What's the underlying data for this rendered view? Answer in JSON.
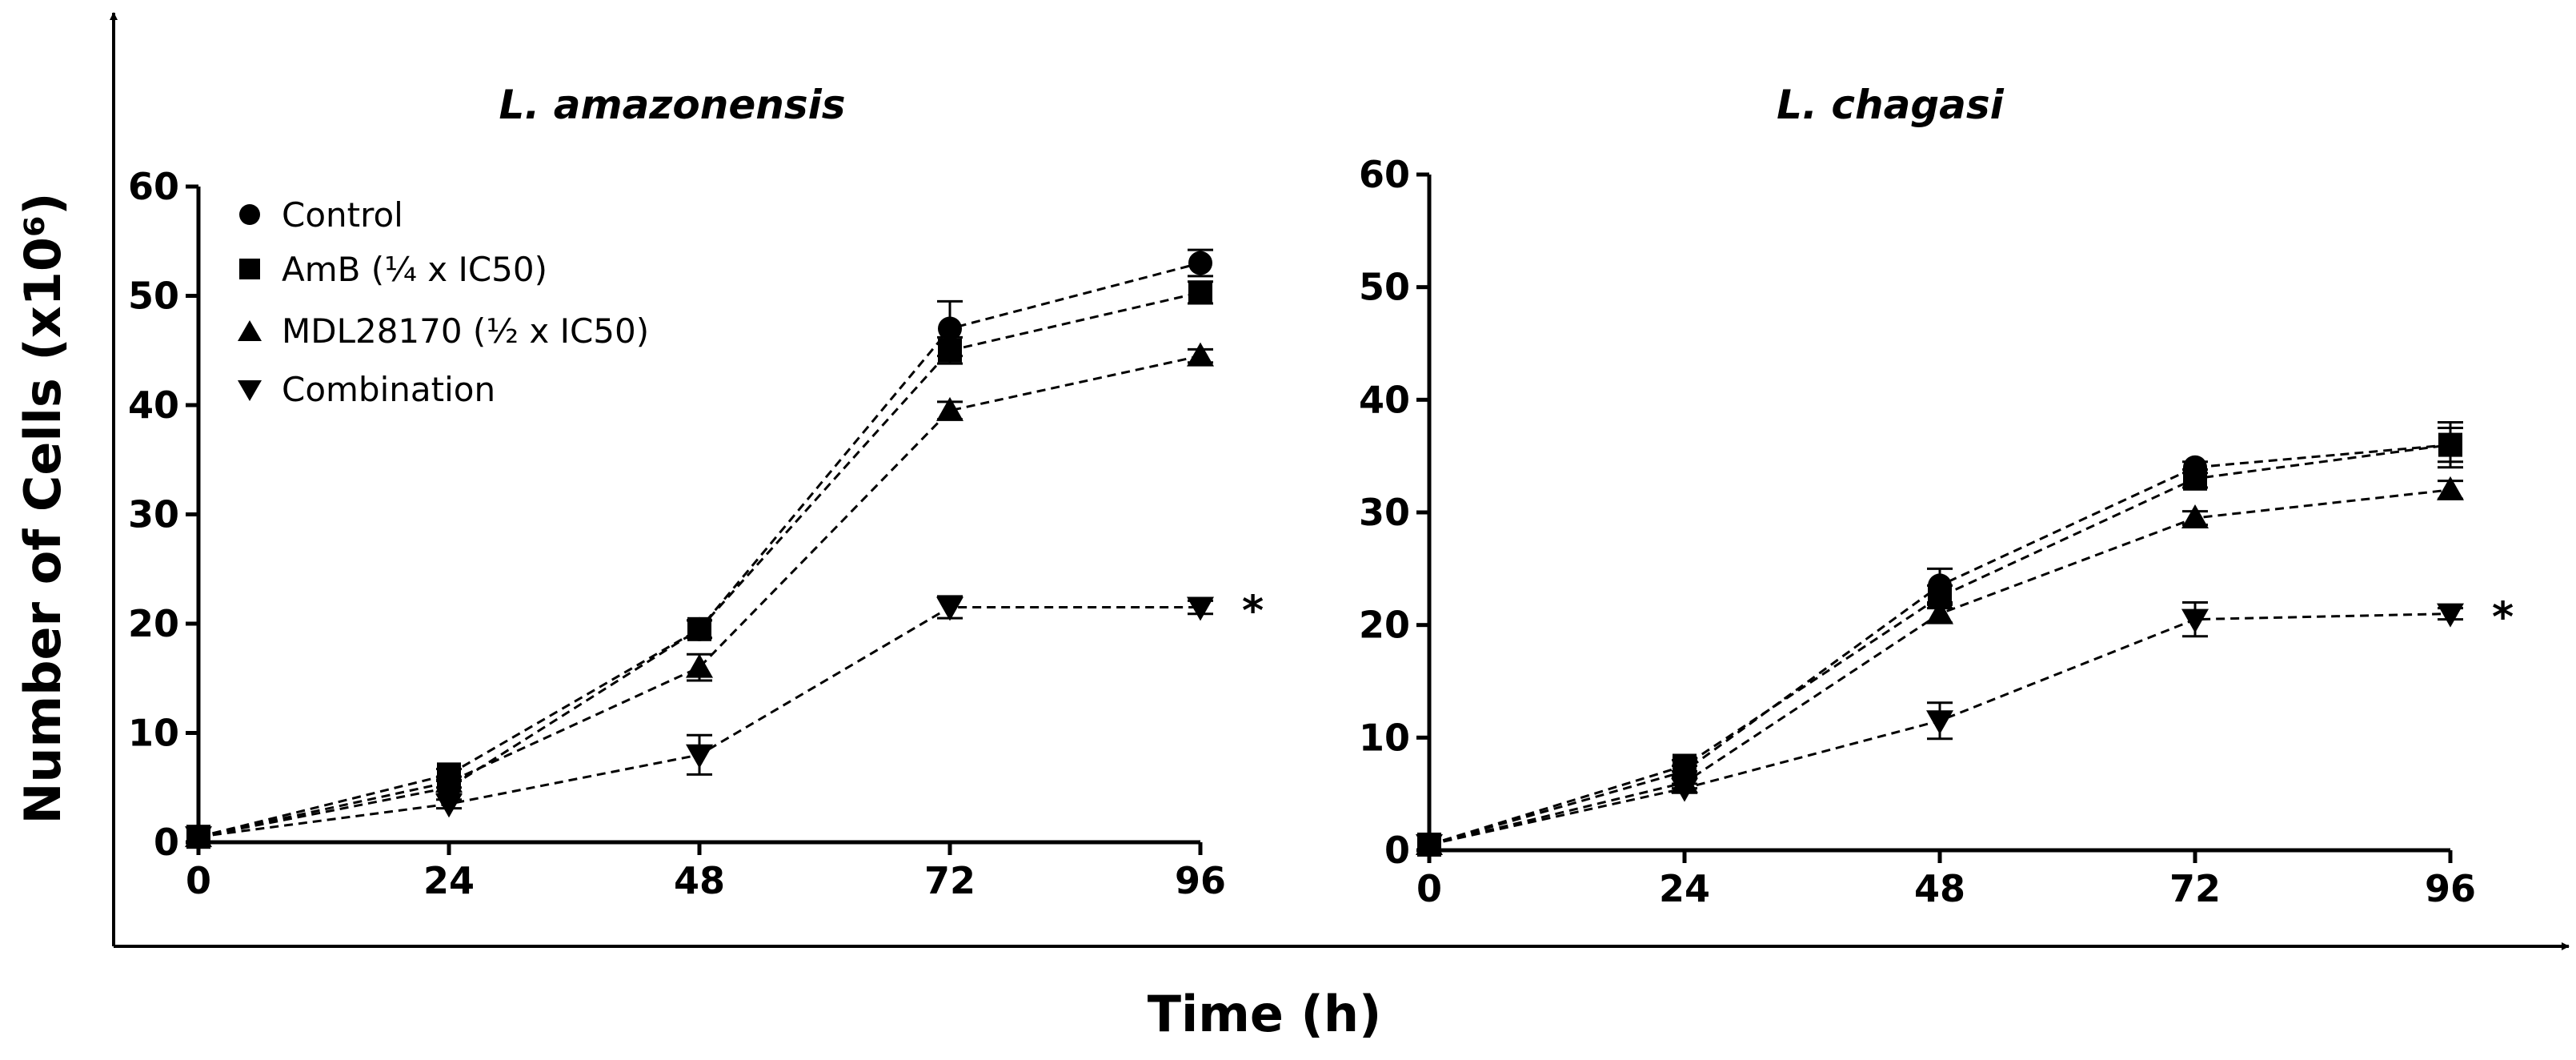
{
  "figure": {
    "xlabel": "Time (h)",
    "ylabel": "Number of Cells (x10⁶)"
  },
  "legend": [
    {
      "name": "Control",
      "marker": "circle-icon"
    },
    {
      "name": "AmB (¼ x IC50)",
      "marker": "square-icon"
    },
    {
      "name": "MDL28170 (½ x IC50)",
      "marker": "triangle-up-icon"
    },
    {
      "name": "Combination",
      "marker": "triangle-down-icon"
    }
  ],
  "chart_data": [
    {
      "type": "line",
      "title": "L. amazonensis",
      "xlabel": "Time (h)",
      "ylabel": "Number of Cells (x10⁶)",
      "x": [
        0,
        24,
        48,
        72,
        96
      ],
      "xlim": [
        0,
        96
      ],
      "ylim": [
        0,
        60
      ],
      "xticks": [
        0,
        24,
        48,
        72,
        96
      ],
      "yticks": [
        0,
        10,
        20,
        30,
        40,
        50,
        60
      ],
      "series": [
        {
          "name": "Control",
          "marker": "circle",
          "values": [
            0.5,
            5,
            19.5,
            47,
            53
          ],
          "errors": [
            0.2,
            0.6,
            0.8,
            2.5,
            1.2
          ]
        },
        {
          "name": "AmB (¼ x IC50)",
          "marker": "square",
          "values": [
            0.5,
            6.2,
            19.5,
            45,
            50.3
          ],
          "errors": [
            0.2,
            0.5,
            0.8,
            1.2,
            1
          ]
        },
        {
          "name": "MDL28170 (½ x IC50)",
          "marker": "triangle-up",
          "values": [
            0.5,
            5.5,
            16,
            39.5,
            44.5
          ],
          "errors": [
            0.2,
            0.5,
            1.2,
            0.8,
            0.6
          ]
        },
        {
          "name": "Combination",
          "marker": "triangle-down",
          "values": [
            0.5,
            3.5,
            8,
            21.5,
            21.5
          ],
          "errors": [
            0.2,
            0.4,
            1.8,
            1,
            0.6
          ]
        }
      ],
      "annotations": [
        {
          "text": "*",
          "series": "Combination",
          "x": 96
        }
      ]
    },
    {
      "type": "line",
      "title": "L. chagasi",
      "xlabel": "Time (h)",
      "ylabel": "Number of Cells (x10⁶)",
      "x": [
        0,
        24,
        48,
        72,
        96
      ],
      "xlim": [
        0,
        96
      ],
      "ylim": [
        0,
        60
      ],
      "xticks": [
        0,
        24,
        48,
        72,
        96
      ],
      "yticks": [
        0,
        10,
        20,
        30,
        40,
        50,
        60
      ],
      "series": [
        {
          "name": "Control",
          "marker": "circle",
          "values": [
            0.5,
            7,
            23.5,
            34,
            36
          ],
          "errors": [
            0.2,
            0.5,
            1.5,
            0.5,
            2
          ]
        },
        {
          "name": "AmB (¼ x IC50)",
          "marker": "square",
          "values": [
            0.5,
            7.5,
            22.5,
            33,
            36
          ],
          "errors": [
            0.2,
            0.5,
            1,
            0.8,
            1.5
          ]
        },
        {
          "name": "MDL28170 (½ x IC50)",
          "marker": "triangle-up",
          "values": [
            0.5,
            6,
            21,
            29.5,
            32
          ],
          "errors": [
            0.2,
            0.5,
            0.8,
            0.6,
            0.8
          ]
        },
        {
          "name": "Combination",
          "marker": "triangle-down",
          "values": [
            0.5,
            5.5,
            11.5,
            20.5,
            21
          ],
          "errors": [
            0.2,
            0.4,
            1.6,
            1.5,
            0.5
          ]
        }
      ],
      "annotations": [
        {
          "text": "*",
          "series": "Combination",
          "x": 96
        }
      ]
    }
  ]
}
